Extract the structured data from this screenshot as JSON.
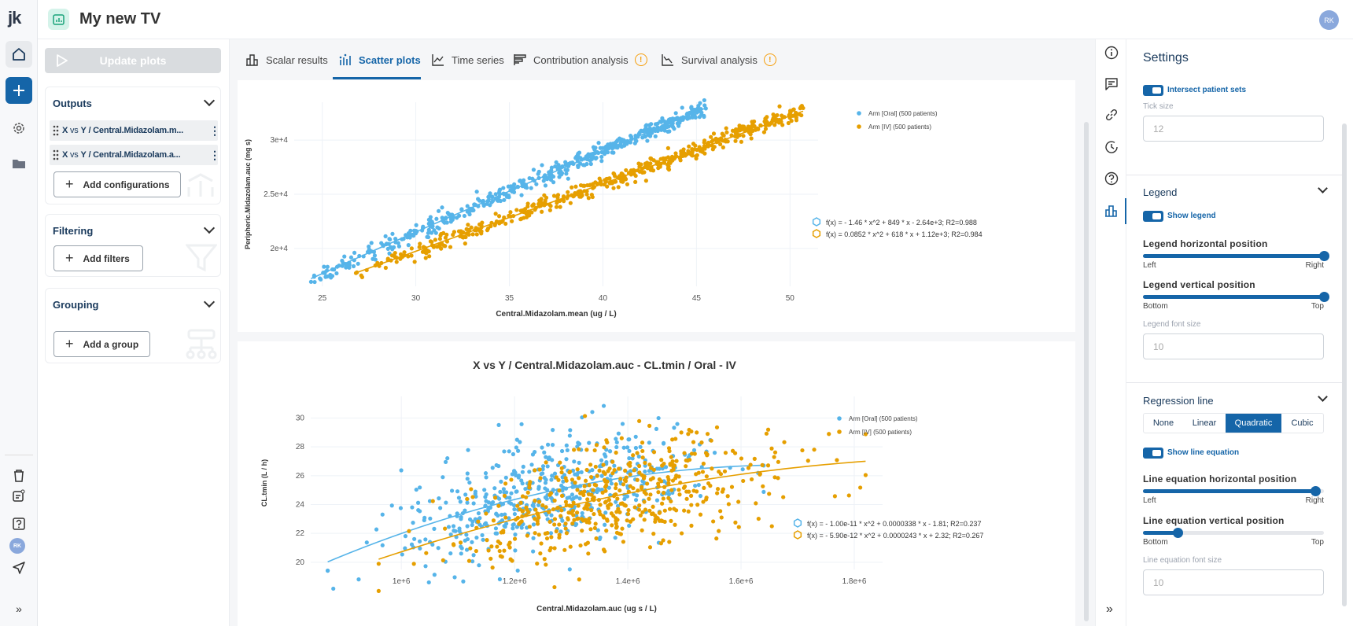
{
  "app": {
    "logo": "jk",
    "title": "My new TV",
    "user_initials": "RK"
  },
  "rail": {
    "top": [
      {
        "icon": "home-icon"
      },
      {
        "icon": "plus-icon"
      },
      {
        "icon": "gear-icon"
      },
      {
        "icon": "folder-icon"
      }
    ],
    "bottom": [
      {
        "icon": "trash-icon"
      },
      {
        "icon": "note-icon"
      },
      {
        "icon": "help-icon"
      },
      {
        "icon": "avatar",
        "label": "RK"
      },
      {
        "icon": "send-icon"
      },
      {
        "icon": "expand-icon"
      }
    ]
  },
  "left": {
    "update_label": "Update plots",
    "outputs": {
      "title": "Outputs",
      "items": [
        {
          "x": "X",
          "vs": "vs",
          "y": "Y",
          "rest": "/ Central.Midazolam.m..."
        },
        {
          "x": "X",
          "vs": "vs",
          "y": "Y",
          "rest": "/ Central.Midazolam.a..."
        }
      ],
      "add_label": "Add configurations"
    },
    "filtering": {
      "title": "Filtering",
      "add_label": "Add filters"
    },
    "grouping": {
      "title": "Grouping",
      "add_label": "Add a group"
    }
  },
  "tabs": [
    {
      "label": "Scalar results",
      "icon": "bar-chart-icon"
    },
    {
      "label": "Scatter plots",
      "icon": "scatter-icon",
      "active": true
    },
    {
      "label": "Time series",
      "icon": "line-chart-icon"
    },
    {
      "label": "Contribution analysis",
      "icon": "contribution-icon",
      "warning": "!"
    },
    {
      "label": "Survival analysis",
      "icon": "survival-icon",
      "warning": "!"
    }
  ],
  "colors": {
    "accent": "#1565a8",
    "oral": "#56b4e9",
    "iv": "#e69f00",
    "warning": "#f59e0b"
  },
  "chart_data": [
    {
      "type": "scatter",
      "title": "",
      "xlabel": "Central.Midazolam.mean (ug / L)",
      "ylabel": "Peripheric.Midazolam.auc (mg s)",
      "xlim": [
        23.5,
        51.5
      ],
      "ylim": [
        16500,
        33500
      ],
      "xticks": [
        25,
        30,
        35,
        40,
        45,
        50
      ],
      "xtick_labels": [
        "25",
        "30",
        "35",
        "40",
        "45",
        "50"
      ],
      "yticks": [
        20000,
        25000,
        30000
      ],
      "ytick_labels": [
        "2e+4",
        "2.5e+4",
        "3e+4"
      ],
      "grid": true,
      "legend_placement": "top-right",
      "series": [
        {
          "name": "Arm [Oral] (500 patients)",
          "n": 500,
          "x_range": [
            24.4,
            45.5
          ],
          "regression": {
            "a": -1.46,
            "b": 849,
            "c": -2640
          },
          "equation": "f(x) = - 1.46 * x^2 + 849 * x - 2.64e+3; R2=0.988"
        },
        {
          "name": "Arm [IV] (500 patients)",
          "n": 500,
          "x_range": [
            26.8,
            50.7
          ],
          "regression": {
            "a": 0.0852,
            "b": 618,
            "c": 1120
          },
          "equation": "f(x) = 0.0852 * x^2 + 618 * x + 1.12e+3; R2=0.984"
        }
      ]
    },
    {
      "type": "scatter",
      "title": "X vs Y / Central.Midazolam.auc - CL.tmin / Oral - IV",
      "xlabel": "Central.Midazolam.auc (ug s / L)",
      "ylabel": "CL.tmin (L / h)",
      "xlim": [
        840000,
        1850000
      ],
      "ylim": [
        19500,
        31500
      ],
      "xticks": [
        1000000,
        1200000,
        1400000,
        1600000,
        1800000
      ],
      "xtick_labels": [
        "1e+6",
        "1.2e+6",
        "1.4e+6",
        "1.6e+6",
        "1.8e+6"
      ],
      "yticks": [
        20,
        22,
        24,
        26,
        28,
        30
      ],
      "ytick_labels": [
        "20",
        "22",
        "24",
        "26",
        "28",
        "30"
      ],
      "grid": true,
      "legend_placement": "top-right",
      "series": [
        {
          "name": "Arm [Oral] (500 patients)",
          "n": 500,
          "x_range": [
            870000,
            1640000
          ],
          "regression": {
            "a": -1e-11,
            "b": 3.38e-05,
            "c": -1.81
          },
          "equation": "f(x) = - 1.00e-11 * x^2 + 0.0000338 * x - 1.81; R2=0.237"
        },
        {
          "name": "Arm [IV] (500 patients)",
          "n": 500,
          "x_range": [
            960000,
            1820000
          ],
          "regression": {
            "a": -5.9e-12,
            "b": 2.43e-05,
            "c": 2.32
          },
          "equation": "f(x) = - 5.90e-12 * x^2 + 0.0000243 * x + 2.32; R2=0.267"
        }
      ]
    }
  ],
  "right_rail": [
    {
      "icon": "info-icon"
    },
    {
      "icon": "comment-icon"
    },
    {
      "icon": "link-icon"
    },
    {
      "icon": "history-icon"
    },
    {
      "icon": "help-icon"
    },
    {
      "icon": "bar-chart-icon",
      "active": true
    },
    {
      "icon": "expand-icon"
    }
  ],
  "settings": {
    "title": "Settings",
    "intersect_label": "Intersect patient sets",
    "tick_size_label": "Tick size",
    "tick_size_value": "12",
    "legend": {
      "title": "Legend",
      "show_label": "Show legend",
      "show": true,
      "h_label": "Legend horizontal position",
      "h_value": 1.0,
      "h_left": "Left",
      "h_right": "Right",
      "v_label": "Legend vertical position",
      "v_value": 1.0,
      "v_bottom": "Bottom",
      "v_top": "Top",
      "font_label": "Legend font size",
      "font_value": "10"
    },
    "regression": {
      "title": "Regression line",
      "options": [
        "None",
        "Linear",
        "Quadratic",
        "Cubic"
      ],
      "selected": "Quadratic",
      "show_eq_label": "Show line equation",
      "show_eq": true,
      "h_label": "Line equation horizontal position",
      "h_value": 0.95,
      "h_left": "Left",
      "h_right": "Right",
      "v_label": "Line equation vertical position",
      "v_value": 0.19,
      "v_bottom": "Bottom",
      "v_top": "Top",
      "font_label": "Line equation font size",
      "font_value": "10"
    }
  }
}
